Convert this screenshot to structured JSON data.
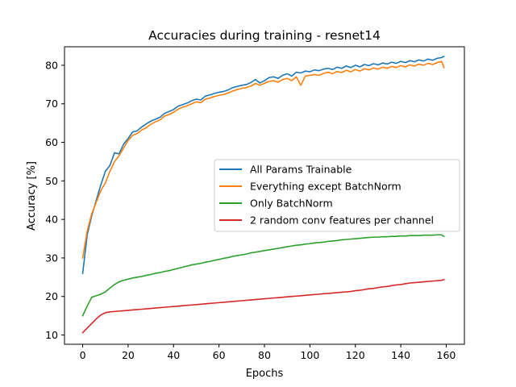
{
  "chart_data": {
    "type": "line",
    "title": "Accuracies during training - resnet14",
    "xlabel": "Epochs",
    "ylabel": "Accuracy [%]",
    "xlim": [
      -8,
      168
    ],
    "ylim": [
      7.6,
      84.8
    ],
    "xticks": [
      0,
      20,
      40,
      60,
      80,
      100,
      120,
      140,
      160
    ],
    "yticks": [
      10,
      20,
      30,
      40,
      50,
      60,
      70,
      80
    ],
    "grid": false,
    "legend_position": "center-right",
    "series": [
      {
        "name": "All Params Trainable",
        "color": "#1f77b4",
        "x": [
          0,
          2,
          4,
          6,
          8,
          10,
          12,
          14,
          16,
          18,
          20,
          22,
          24,
          26,
          28,
          30,
          32,
          34,
          36,
          38,
          40,
          42,
          44,
          46,
          48,
          50,
          52,
          54,
          56,
          58,
          60,
          62,
          64,
          66,
          68,
          70,
          72,
          74,
          76,
          78,
          80,
          82,
          84,
          86,
          88,
          90,
          92,
          94,
          96,
          98,
          100,
          102,
          104,
          106,
          108,
          110,
          112,
          114,
          116,
          118,
          120,
          122,
          124,
          126,
          128,
          130,
          132,
          134,
          136,
          138,
          140,
          142,
          144,
          146,
          148,
          150,
          152,
          154,
          156,
          158,
          159
        ],
        "y": [
          26,
          36,
          41,
          45,
          49,
          52.5,
          54,
          57.3,
          57,
          59.5,
          61,
          62.7,
          63,
          64,
          64.8,
          65.5,
          66,
          66.5,
          67.5,
          68,
          68.5,
          69.4,
          69.8,
          70.2,
          70.8,
          71.2,
          71,
          72,
          72.3,
          72.7,
          73,
          73.2,
          73.6,
          74.2,
          74.5,
          74.8,
          75,
          75.5,
          76.3,
          75.4,
          76,
          76.8,
          77,
          76.6,
          77.4,
          77.8,
          77.2,
          78.2,
          78,
          78.5,
          78.3,
          78.8,
          78.6,
          79,
          79.2,
          78.9,
          79.5,
          79.2,
          79.8,
          79.4,
          80,
          79.6,
          80.2,
          79.9,
          80.4,
          80.1,
          80.6,
          80.3,
          80.8,
          80.5,
          81,
          80.7,
          81.2,
          80.9,
          81.4,
          81.1,
          81.6,
          81.3,
          81.8,
          82,
          82.3
        ]
      },
      {
        "name": "Everything except BatchNorm",
        "color": "#ff7f0e",
        "x": [
          0,
          2,
          4,
          6,
          8,
          10,
          12,
          14,
          16,
          18,
          20,
          22,
          24,
          26,
          28,
          30,
          32,
          34,
          36,
          38,
          40,
          42,
          44,
          46,
          48,
          50,
          52,
          54,
          56,
          58,
          60,
          62,
          64,
          66,
          68,
          70,
          72,
          74,
          76,
          78,
          80,
          82,
          84,
          86,
          88,
          90,
          92,
          94,
          96,
          98,
          100,
          102,
          104,
          106,
          108,
          110,
          112,
          114,
          116,
          118,
          120,
          122,
          124,
          126,
          128,
          130,
          132,
          134,
          136,
          138,
          140,
          142,
          144,
          146,
          148,
          150,
          152,
          154,
          156,
          158,
          159
        ],
        "y": [
          30,
          37,
          41.5,
          44.5,
          47.5,
          49.5,
          52.5,
          55,
          56.5,
          58.5,
          60.5,
          61.8,
          62.3,
          63.2,
          63.8,
          64.7,
          65.3,
          65.8,
          66.8,
          67.2,
          67.8,
          68.6,
          69.1,
          69.5,
          70,
          70.5,
          70.3,
          71.2,
          71.5,
          71.9,
          72.2,
          72.4,
          72.8,
          73.3,
          73.7,
          74,
          74.2,
          74.6,
          75.3,
          74.8,
          75.3,
          75.8,
          76,
          75.6,
          76.3,
          76.6,
          76,
          77,
          74.8,
          77.2,
          77.4,
          77.6,
          77.4,
          77.9,
          78.2,
          77.8,
          78.4,
          78.1,
          78.7,
          78.3,
          78.9,
          78.5,
          79.1,
          78.8,
          79.3,
          79,
          79.5,
          79.2,
          79.7,
          79.4,
          79.9,
          79.6,
          80.1,
          79.8,
          80.3,
          80,
          80.5,
          80.2,
          80.7,
          81,
          79.4
        ]
      },
      {
        "name": "Only BatchNorm",
        "color": "#2ca02c",
        "x": [
          0,
          2,
          4,
          6,
          8,
          10,
          12,
          14,
          16,
          18,
          20,
          22,
          24,
          26,
          28,
          30,
          32,
          34,
          36,
          38,
          40,
          42,
          44,
          46,
          48,
          50,
          52,
          54,
          56,
          58,
          60,
          62,
          64,
          66,
          68,
          70,
          72,
          74,
          76,
          78,
          80,
          82,
          84,
          86,
          88,
          90,
          92,
          94,
          96,
          98,
          100,
          102,
          104,
          106,
          108,
          110,
          112,
          114,
          116,
          118,
          120,
          122,
          124,
          126,
          128,
          130,
          132,
          134,
          136,
          138,
          140,
          142,
          144,
          146,
          148,
          150,
          152,
          154,
          156,
          158,
          159
        ],
        "y": [
          15,
          17.5,
          19.8,
          20.2,
          20.6,
          21.2,
          22.2,
          23.1,
          23.8,
          24.2,
          24.5,
          24.8,
          25,
          25.2,
          25.5,
          25.7,
          26,
          26.2,
          26.5,
          26.7,
          27,
          27.3,
          27.6,
          27.9,
          28.2,
          28.4,
          28.6,
          28.9,
          29.1,
          29.4,
          29.6,
          29.9,
          30.1,
          30.4,
          30.6,
          30.8,
          31,
          31.3,
          31.5,
          31.7,
          31.9,
          32.1,
          32.3,
          32.5,
          32.7,
          32.9,
          33.1,
          33.3,
          33.4,
          33.6,
          33.7,
          33.9,
          34,
          34.1,
          34.3,
          34.4,
          34.5,
          34.7,
          34.8,
          34.9,
          35,
          35.1,
          35.2,
          35.3,
          35.4,
          35.4,
          35.5,
          35.5,
          35.6,
          35.6,
          35.7,
          35.7,
          35.8,
          35.8,
          35.8,
          35.9,
          35.9,
          35.9,
          36,
          36,
          35.6
        ]
      },
      {
        "name": "2 random conv features per channel",
        "color": "#d62728",
        "x": [
          0,
          2,
          4,
          6,
          8,
          10,
          12,
          14,
          16,
          18,
          20,
          22,
          24,
          26,
          28,
          30,
          32,
          34,
          36,
          38,
          40,
          42,
          44,
          46,
          48,
          50,
          52,
          54,
          56,
          58,
          60,
          62,
          64,
          66,
          68,
          70,
          72,
          74,
          76,
          78,
          80,
          82,
          84,
          86,
          88,
          90,
          92,
          94,
          96,
          98,
          100,
          102,
          104,
          106,
          108,
          110,
          112,
          114,
          116,
          118,
          120,
          122,
          124,
          126,
          128,
          130,
          132,
          134,
          136,
          138,
          140,
          142,
          144,
          146,
          148,
          150,
          152,
          154,
          156,
          158,
          159
        ],
        "y": [
          10.6,
          11.8,
          13,
          14.2,
          15.2,
          15.8,
          16,
          16.1,
          16.2,
          16.3,
          16.4,
          16.5,
          16.6,
          16.7,
          16.8,
          16.9,
          17,
          17.1,
          17.2,
          17.3,
          17.4,
          17.5,
          17.6,
          17.7,
          17.8,
          17.9,
          18,
          18.1,
          18.2,
          18.3,
          18.4,
          18.5,
          18.6,
          18.7,
          18.8,
          18.9,
          19,
          19.1,
          19.2,
          19.3,
          19.4,
          19.5,
          19.6,
          19.7,
          19.8,
          19.9,
          20,
          20.1,
          20.2,
          20.3,
          20.4,
          20.5,
          20.6,
          20.7,
          20.8,
          20.9,
          21,
          21.1,
          21.2,
          21.3,
          21.5,
          21.6,
          21.8,
          22,
          22.1,
          22.3,
          22.5,
          22.6,
          22.8,
          23,
          23.1,
          23.3,
          23.5,
          23.6,
          23.7,
          23.8,
          23.9,
          24,
          24.1,
          24.2,
          24.4
        ]
      }
    ]
  }
}
